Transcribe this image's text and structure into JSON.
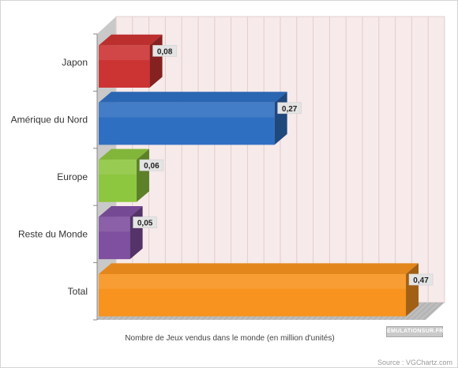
{
  "chart_data": {
    "type": "bar",
    "orientation": "horizontal",
    "categories": [
      "Japon",
      "Amérique du Nord",
      "Europe",
      "Reste du Monde",
      "Total"
    ],
    "values": [
      0.08,
      0.27,
      0.06,
      0.05,
      0.47
    ],
    "value_labels": [
      "0,08",
      "0,27",
      "0,06",
      "0,05",
      "0,47"
    ],
    "colors": [
      "#cc3333",
      "#2f6fc1",
      "#8dc63f",
      "#7f4fa0",
      "#f7931e"
    ],
    "xlabel": "Nombre de Jeux vendus dans le monde (en million d'unités)",
    "xlim": [
      0,
      0.5
    ],
    "grid": true,
    "legend": "none",
    "background_color": "#f7eaea"
  },
  "footer": {
    "source": "Source : VGChartz.com",
    "watermark": "EMULATIONSUR.FR"
  }
}
